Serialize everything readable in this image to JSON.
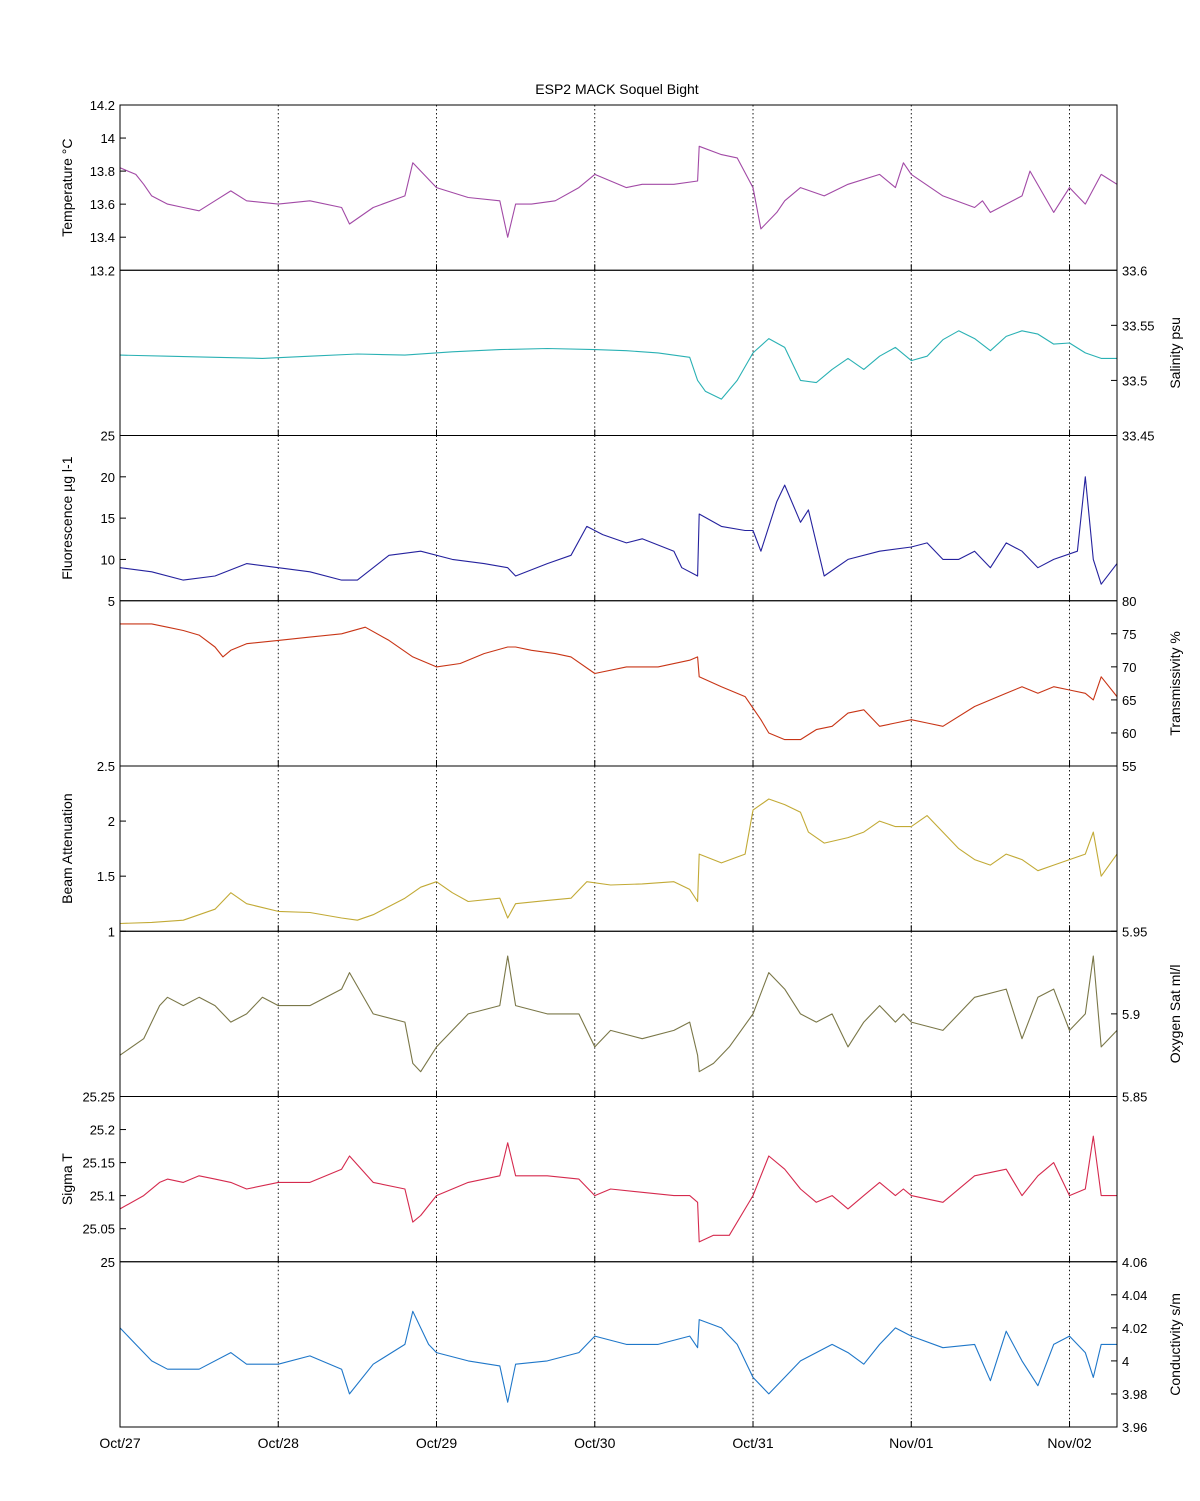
{
  "title": "ESP2 MACK  Soquel Bight",
  "x_axis": {
    "tick_labels": [
      "Oct/27",
      "Oct/28",
      "Oct/29",
      "Oct/30",
      "Oct/31",
      "Nov/01",
      "Nov/02"
    ],
    "range_days": [
      0,
      6.3
    ]
  },
  "chart_data": [
    {
      "type": "line",
      "ylabel": "Temperature °C",
      "ylabel_side": "left",
      "ylim": [
        13.2,
        14.2
      ],
      "ticks": [
        13.4,
        13.6,
        13.8,
        14
      ],
      "tick_side": "left",
      "corner_label": "14.2",
      "bottom_label": "13.2",
      "color": "#a24aa6",
      "x_days": [
        0,
        0.1,
        0.15,
        0.2,
        0.3,
        0.4,
        0.5,
        0.6,
        0.7,
        0.8,
        1.0,
        1.2,
        1.4,
        1.45,
        1.6,
        1.8,
        1.85,
        2.0,
        2.2,
        2.4,
        2.45,
        2.5,
        2.6,
        2.75,
        2.9,
        3.0,
        3.2,
        3.3,
        3.5,
        3.65,
        3.66,
        3.8,
        3.9,
        4.0,
        4.05,
        4.15,
        4.2,
        4.3,
        4.45,
        4.6,
        4.8,
        4.9,
        4.95,
        5.0,
        5.2,
        5.4,
        5.45,
        5.5,
        5.7,
        5.75,
        5.9,
        6.0,
        6.1,
        6.2,
        6.3
      ],
      "values": [
        13.82,
        13.78,
        13.72,
        13.65,
        13.6,
        13.58,
        13.56,
        13.62,
        13.68,
        13.62,
        13.6,
        13.62,
        13.58,
        13.48,
        13.58,
        13.65,
        13.85,
        13.7,
        13.64,
        13.62,
        13.4,
        13.6,
        13.6,
        13.62,
        13.7,
        13.78,
        13.7,
        13.72,
        13.72,
        13.74,
        13.95,
        13.9,
        13.88,
        13.7,
        13.45,
        13.55,
        13.62,
        13.7,
        13.65,
        13.72,
        13.78,
        13.7,
        13.85,
        13.78,
        13.65,
        13.58,
        13.62,
        13.55,
        13.65,
        13.8,
        13.55,
        13.7,
        13.6,
        13.78,
        13.72
      ]
    },
    {
      "type": "line",
      "ylabel": "Salinity psu",
      "ylabel_side": "right",
      "ylim": [
        33.45,
        33.6
      ],
      "ticks": [
        33.5,
        33.55
      ],
      "tick_side": "right",
      "corner_label": "33.6",
      "bottom_label": "33.45",
      "color": "#2ab1b4",
      "x_days": [
        0,
        0.3,
        0.6,
        0.9,
        1.2,
        1.5,
        1.8,
        2.1,
        2.4,
        2.7,
        3.0,
        3.2,
        3.4,
        3.6,
        3.65,
        3.7,
        3.8,
        3.9,
        4.0,
        4.1,
        4.2,
        4.3,
        4.4,
        4.5,
        4.6,
        4.7,
        4.8,
        4.9,
        5.0,
        5.1,
        5.2,
        5.3,
        5.4,
        5.5,
        5.6,
        5.7,
        5.8,
        5.9,
        6.0,
        6.1,
        6.2,
        6.3
      ],
      "values": [
        33.523,
        33.522,
        33.521,
        33.52,
        33.522,
        33.524,
        33.523,
        33.526,
        33.528,
        33.529,
        33.528,
        33.527,
        33.525,
        33.521,
        33.5,
        33.49,
        33.483,
        33.5,
        33.525,
        33.538,
        33.53,
        33.5,
        33.498,
        33.51,
        33.52,
        33.51,
        33.522,
        33.53,
        33.518,
        33.522,
        33.537,
        33.545,
        33.538,
        33.527,
        33.54,
        33.545,
        33.542,
        33.533,
        33.534,
        33.525,
        33.52,
        33.52
      ]
    },
    {
      "type": "line",
      "ylabel": "Fluorescence µg l-1",
      "ylabel_side": "left",
      "ylim": [
        5,
        25
      ],
      "ticks": [
        10,
        15,
        20
      ],
      "tick_side": "left",
      "corner_label": "25",
      "bottom_label": "5",
      "color": "#25229e",
      "x_days": [
        0,
        0.2,
        0.4,
        0.6,
        0.8,
        1.0,
        1.2,
        1.4,
        1.5,
        1.7,
        1.9,
        2.1,
        2.3,
        2.45,
        2.5,
        2.7,
        2.85,
        2.95,
        3.05,
        3.2,
        3.3,
        3.5,
        3.55,
        3.65,
        3.66,
        3.8,
        3.95,
        4.0,
        4.05,
        4.15,
        4.2,
        4.3,
        4.35,
        4.45,
        4.6,
        4.8,
        5.0,
        5.1,
        5.2,
        5.3,
        5.4,
        5.5,
        5.6,
        5.7,
        5.8,
        5.9,
        6.05,
        6.1,
        6.15,
        6.2,
        6.3
      ],
      "values": [
        9,
        8.5,
        7.5,
        8,
        9.5,
        9,
        8.5,
        7.5,
        7.5,
        10.5,
        11,
        10,
        9.5,
        9,
        8,
        9.5,
        10.5,
        14,
        13,
        12,
        12.5,
        11,
        9,
        8,
        15.5,
        14,
        13.5,
        13.5,
        11,
        17,
        19,
        14.5,
        16,
        8,
        10,
        11,
        11.5,
        12,
        10,
        10,
        11,
        9,
        12,
        11,
        9,
        10,
        11,
        20,
        10,
        7,
        9.5
      ]
    },
    {
      "type": "line",
      "ylabel": "Transmissivity %",
      "ylabel_side": "right",
      "ylim": [
        55,
        80
      ],
      "ticks": [
        55,
        60,
        65,
        70,
        75
      ],
      "tick_side": "right",
      "corner_label": "80",
      "bottom_label": "55",
      "color": "#c83516",
      "x_days": [
        0,
        0.2,
        0.3,
        0.4,
        0.5,
        0.6,
        0.65,
        0.7,
        0.8,
        1.0,
        1.2,
        1.4,
        1.55,
        1.7,
        1.85,
        2.0,
        2.15,
        2.3,
        2.45,
        2.5,
        2.6,
        2.75,
        2.85,
        3.0,
        3.2,
        3.4,
        3.6,
        3.65,
        3.66,
        3.8,
        3.95,
        4.05,
        4.1,
        4.2,
        4.3,
        4.4,
        4.5,
        4.6,
        4.7,
        4.8,
        4.9,
        5.0,
        5.1,
        5.2,
        5.4,
        5.6,
        5.7,
        5.8,
        5.9,
        6.0,
        6.1,
        6.15,
        6.2,
        6.3
      ],
      "values": [
        76.5,
        76.5,
        76,
        75.5,
        74.8,
        73,
        71.5,
        72.5,
        73.5,
        74,
        74.5,
        75,
        76,
        74,
        71.5,
        70,
        70.5,
        72,
        73,
        73,
        72.5,
        72,
        71.5,
        69,
        70,
        70,
        71,
        71.5,
        68.5,
        67,
        65.5,
        62,
        60,
        59,
        59,
        60.5,
        61,
        63,
        63.5,
        61,
        61.5,
        62,
        61.5,
        61,
        64,
        66,
        67,
        66,
        67,
        66.5,
        66,
        65,
        68.5,
        65.5
      ]
    },
    {
      "type": "line",
      "ylabel": "Beam Attenuation",
      "ylabel_side": "left",
      "ylim": [
        1,
        2.5
      ],
      "ticks": [
        1,
        1.5,
        2
      ],
      "tick_side": "left",
      "corner_label": "2.5",
      "bottom_label": "",
      "color": "#c2aa36",
      "x_days": [
        0,
        0.2,
        0.4,
        0.6,
        0.7,
        0.8,
        1.0,
        1.2,
        1.4,
        1.5,
        1.6,
        1.8,
        1.9,
        2.0,
        2.1,
        2.2,
        2.4,
        2.45,
        2.5,
        2.7,
        2.85,
        2.95,
        3.1,
        3.3,
        3.5,
        3.6,
        3.65,
        3.66,
        3.8,
        3.95,
        4.0,
        4.1,
        4.2,
        4.3,
        4.35,
        4.45,
        4.6,
        4.7,
        4.8,
        4.9,
        5.0,
        5.1,
        5.2,
        5.3,
        5.4,
        5.5,
        5.6,
        5.7,
        5.8,
        5.9,
        6.0,
        6.1,
        6.15,
        6.2,
        6.3
      ],
      "values": [
        1.07,
        1.08,
        1.1,
        1.2,
        1.35,
        1.25,
        1.18,
        1.17,
        1.12,
        1.1,
        1.15,
        1.3,
        1.4,
        1.45,
        1.35,
        1.27,
        1.3,
        1.12,
        1.25,
        1.28,
        1.3,
        1.45,
        1.42,
        1.43,
        1.45,
        1.38,
        1.27,
        1.7,
        1.62,
        1.7,
        2.1,
        2.2,
        2.15,
        2.08,
        1.9,
        1.8,
        1.85,
        1.9,
        2.0,
        1.95,
        1.95,
        2.05,
        1.9,
        1.75,
        1.65,
        1.6,
        1.7,
        1.65,
        1.55,
        1.6,
        1.65,
        1.7,
        1.9,
        1.5,
        1.7
      ]
    },
    {
      "type": "line",
      "ylabel": "Oxygen Sat ml/l",
      "ylabel_side": "right",
      "ylim": [
        5.85,
        5.95
      ],
      "ticks": [
        5.85,
        5.9,
        5.95
      ],
      "tick_side": "right",
      "corner_label": "5.95",
      "bottom_label": "5.85",
      "color": "#7a7748",
      "x_days": [
        0,
        0.15,
        0.25,
        0.3,
        0.4,
        0.5,
        0.6,
        0.7,
        0.8,
        0.9,
        1.0,
        1.2,
        1.4,
        1.45,
        1.6,
        1.8,
        1.85,
        1.9,
        2.0,
        2.2,
        2.4,
        2.45,
        2.5,
        2.7,
        2.9,
        3.0,
        3.1,
        3.3,
        3.5,
        3.6,
        3.65,
        3.66,
        3.75,
        3.85,
        4.0,
        4.1,
        4.2,
        4.3,
        4.4,
        4.5,
        4.6,
        4.7,
        4.8,
        4.9,
        4.95,
        5.0,
        5.2,
        5.4,
        5.6,
        5.7,
        5.8,
        5.9,
        6.0,
        6.1,
        6.15,
        6.2,
        6.3
      ],
      "values": [
        5.875,
        5.885,
        5.905,
        5.91,
        5.905,
        5.91,
        5.905,
        5.895,
        5.9,
        5.91,
        5.905,
        5.905,
        5.915,
        5.925,
        5.9,
        5.895,
        5.87,
        5.865,
        5.88,
        5.9,
        5.905,
        5.935,
        5.905,
        5.9,
        5.9,
        5.88,
        5.89,
        5.885,
        5.89,
        5.895,
        5.875,
        5.865,
        5.87,
        5.88,
        5.9,
        5.925,
        5.915,
        5.9,
        5.895,
        5.9,
        5.88,
        5.895,
        5.905,
        5.895,
        5.9,
        5.895,
        5.89,
        5.91,
        5.915,
        5.885,
        5.91,
        5.915,
        5.89,
        5.9,
        5.935,
        5.88,
        5.89
      ]
    },
    {
      "type": "line",
      "ylabel": "Sigma T",
      "ylabel_side": "left",
      "ylim": [
        25,
        25.25
      ],
      "ticks": [
        25.05,
        25.1,
        25.15,
        25.2
      ],
      "tick_side": "left",
      "corner_label": "25.25",
      "bottom_label": "25",
      "color": "#d52a4e",
      "x_days": [
        0,
        0.15,
        0.25,
        0.3,
        0.4,
        0.5,
        0.6,
        0.7,
        0.8,
        1.0,
        1.2,
        1.4,
        1.45,
        1.6,
        1.8,
        1.85,
        1.9,
        2.0,
        2.2,
        2.4,
        2.45,
        2.5,
        2.7,
        2.9,
        3.0,
        3.1,
        3.3,
        3.5,
        3.6,
        3.65,
        3.66,
        3.75,
        3.85,
        4.0,
        4.1,
        4.2,
        4.3,
        4.4,
        4.5,
        4.6,
        4.7,
        4.8,
        4.9,
        4.95,
        5.0,
        5.2,
        5.4,
        5.6,
        5.7,
        5.8,
        5.9,
        6.0,
        6.1,
        6.15,
        6.2,
        6.3
      ],
      "values": [
        25.08,
        25.1,
        25.12,
        25.125,
        25.12,
        25.13,
        25.125,
        25.12,
        25.11,
        25.12,
        25.12,
        25.14,
        25.16,
        25.12,
        25.11,
        25.06,
        25.07,
        25.1,
        25.12,
        25.13,
        25.18,
        25.13,
        25.13,
        25.125,
        25.1,
        25.11,
        25.105,
        25.1,
        25.1,
        25.09,
        25.03,
        25.04,
        25.04,
        25.1,
        25.16,
        25.14,
        25.11,
        25.09,
        25.1,
        25.08,
        25.1,
        25.12,
        25.1,
        25.11,
        25.1,
        25.09,
        25.13,
        25.14,
        25.1,
        25.13,
        25.15,
        25.1,
        25.11,
        25.19,
        25.1,
        25.1
      ]
    },
    {
      "type": "line",
      "ylabel": "Conductivity s/m",
      "ylabel_side": "right",
      "ylim": [
        3.96,
        4.06
      ],
      "ticks": [
        3.96,
        3.98,
        4,
        4.02,
        4.04,
        4.06
      ],
      "tick_side": "right",
      "corner_label": "4.06",
      "bottom_label": "3.96",
      "color": "#1f77c9",
      "x_days": [
        0,
        0.1,
        0.2,
        0.3,
        0.5,
        0.7,
        0.8,
        1.0,
        1.2,
        1.4,
        1.45,
        1.6,
        1.8,
        1.85,
        1.95,
        2.0,
        2.2,
        2.4,
        2.45,
        2.5,
        2.7,
        2.9,
        3.0,
        3.2,
        3.4,
        3.6,
        3.65,
        3.66,
        3.8,
        3.9,
        4.0,
        4.1,
        4.2,
        4.3,
        4.4,
        4.5,
        4.6,
        4.7,
        4.8,
        4.9,
        5.0,
        5.2,
        5.4,
        5.5,
        5.6,
        5.7,
        5.8,
        5.9,
        6.0,
        6.1,
        6.15,
        6.2,
        6.3
      ],
      "values": [
        4.02,
        4.01,
        4.0,
        3.995,
        3.995,
        4.005,
        3.998,
        3.998,
        4.003,
        3.995,
        3.98,
        3.998,
        4.01,
        4.03,
        4.01,
        4.005,
        4.0,
        3.997,
        3.975,
        3.998,
        4.0,
        4.005,
        4.015,
        4.01,
        4.01,
        4.015,
        4.008,
        4.025,
        4.02,
        4.01,
        3.99,
        3.98,
        3.99,
        4.0,
        4.005,
        4.01,
        4.005,
        3.998,
        4.01,
        4.02,
        4.015,
        4.008,
        4.01,
        3.988,
        4.018,
        4.0,
        3.985,
        4.01,
        4.015,
        4.005,
        3.99,
        4.01,
        4.01
      ]
    }
  ]
}
